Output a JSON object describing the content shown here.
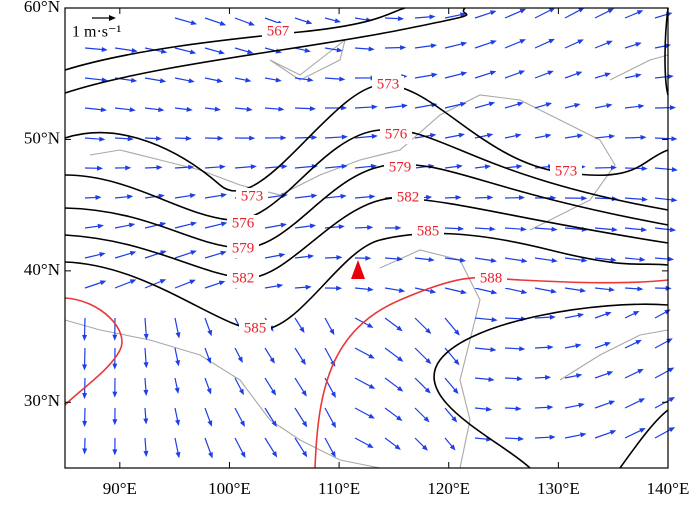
{
  "map": {
    "lonlim": [
      85,
      140
    ],
    "latlim": [
      25,
      60
    ],
    "lon_ticks": [
      {
        "value": 90,
        "label": "90°E"
      },
      {
        "value": 100,
        "label": "100°E"
      },
      {
        "value": 110,
        "label": "110°E"
      },
      {
        "value": 120,
        "label": "120°E"
      },
      {
        "value": 130,
        "label": "130°E"
      },
      {
        "value": 140,
        "label": "140°E"
      }
    ],
    "lat_ticks": [
      {
        "value": 30,
        "label": "30°N"
      },
      {
        "value": 40,
        "label": "40°N"
      },
      {
        "value": 50,
        "label": "50°N"
      },
      {
        "value": 60,
        "label": "60°N"
      }
    ],
    "scale_label": "1 m·s⁻¹",
    "contour_labels": [
      567,
      573,
      576,
      579,
      582,
      585,
      573,
      576,
      579,
      582,
      585,
      573,
      588
    ]
  }
}
